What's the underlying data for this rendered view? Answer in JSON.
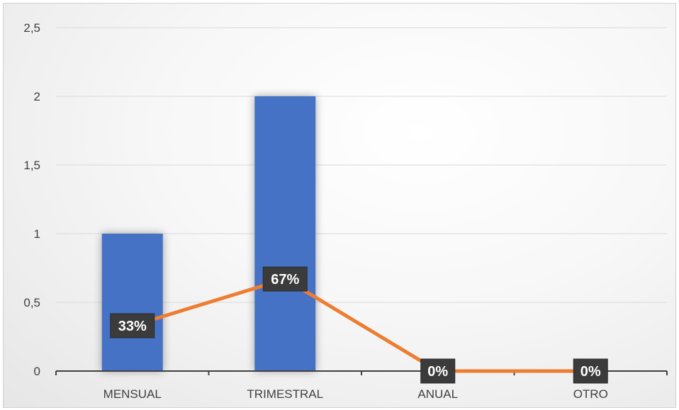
{
  "chart_data": {
    "type": "bar",
    "categories": [
      "MENSUAL",
      "TRIMESTRAL",
      "ANUAL",
      "OTRO"
    ],
    "series": [
      {
        "type": "bar",
        "values": [
          1,
          2,
          0,
          0
        ],
        "color": "#4472c4"
      },
      {
        "type": "line",
        "values": [
          0.33,
          0.67,
          0,
          0
        ],
        "labels": [
          "33%",
          "67%",
          "0%",
          "0%"
        ],
        "color": "#ed7d31"
      }
    ],
    "yticks": [
      "0",
      "0,5",
      "1",
      "1,5",
      "2",
      "2,5"
    ],
    "ylim": [
      0,
      2.5
    ],
    "grid": true,
    "legend": "none",
    "title": "",
    "xlabel": "",
    "ylabel": ""
  }
}
